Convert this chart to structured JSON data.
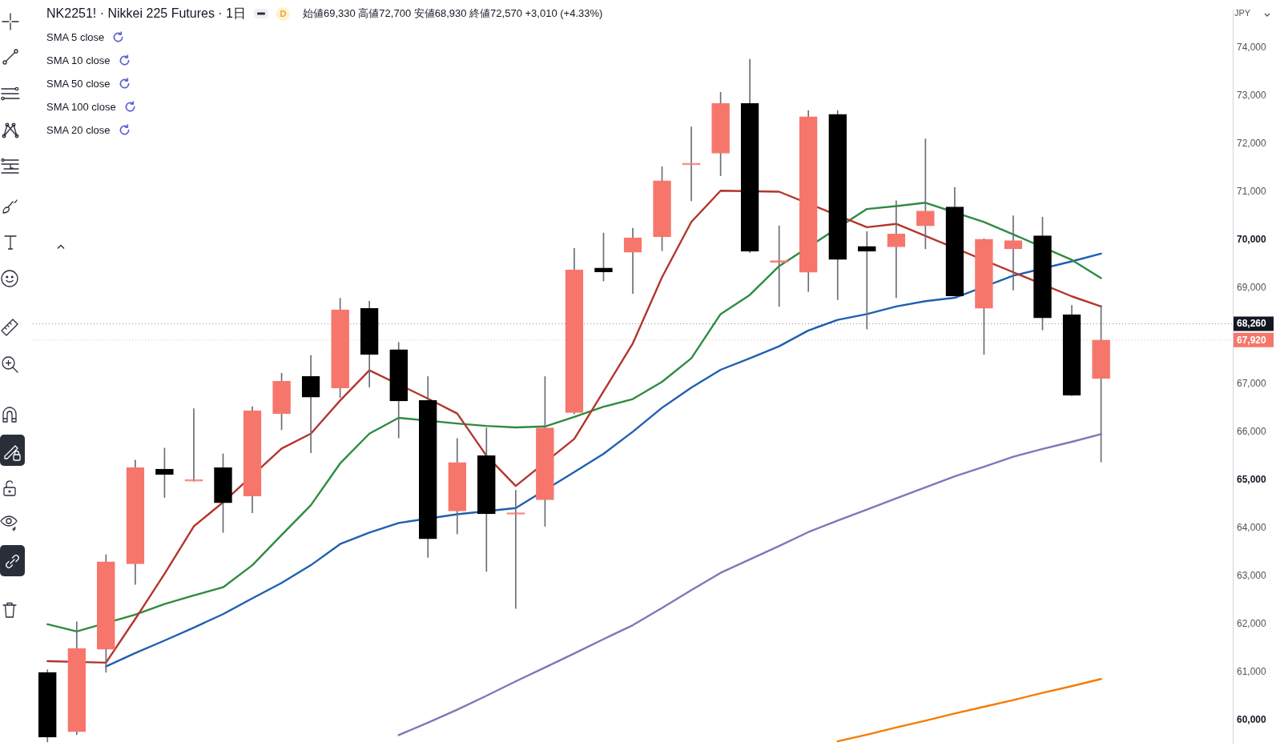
{
  "chart_data": {
    "type": "candlestick",
    "title": "NK2251! · Nikkei 225 Futures · 1日",
    "subtitle": "始値69,330 高値72,700 安値68,930 終値72,570 +3,010 (+4.33%)",
    "ylabel": "JPY",
    "annotations": [
      "D",
      "SMA 5 close",
      "SMA 10 close",
      "SMA 50 close",
      "SMA 100 close",
      "SMA 20 close"
    ],
    "categories": [
      null,
      null,
      null,
      null,
      null,
      null,
      null,
      null,
      null,
      null,
      null,
      null,
      null,
      null,
      null,
      null,
      null,
      null,
      null,
      null,
      null,
      null,
      null,
      null,
      null,
      null,
      null,
      null,
      null,
      null,
      null,
      null,
      null,
      null,
      null,
      null,
      null,
      null,
      null,
      null,
      null
    ],
    "ohlc": [
      [
        60990,
        61050,
        59550,
        59650
      ],
      [
        59760,
        62050,
        59700,
        61490
      ],
      [
        61480,
        63450,
        61000,
        63300
      ],
      [
        63260,
        65420,
        62830,
        65260
      ],
      [
        65230,
        65670,
        64640,
        65120
      ],
      [
        64980,
        66490,
        64980,
        64990
      ],
      [
        65260,
        65550,
        63910,
        64530
      ],
      [
        64670,
        66530,
        64320,
        66450
      ],
      [
        66390,
        67230,
        66050,
        67060
      ],
      [
        67160,
        67600,
        65570,
        66730
      ],
      [
        66920,
        68790,
        66720,
        68550
      ],
      [
        68580,
        68730,
        66940,
        67620
      ],
      [
        67720,
        67870,
        65880,
        66650
      ],
      [
        66660,
        67160,
        63390,
        63780
      ],
      [
        64360,
        65870,
        63880,
        65370
      ],
      [
        65510,
        66090,
        63100,
        64300
      ],
      [
        64290,
        64790,
        62330,
        64290
      ],
      [
        64590,
        67160,
        64040,
        66090
      ],
      [
        66410,
        69830,
        66380,
        69380
      ],
      [
        69420,
        70150,
        69150,
        69340
      ],
      [
        69750,
        70250,
        68890,
        70050
      ],
      [
        70070,
        71530,
        69780,
        71240
      ],
      [
        71570,
        72360,
        70820,
        71600
      ],
      [
        71810,
        73080,
        71340,
        72850
      ],
      [
        72850,
        73770,
        69740,
        69770
      ],
      [
        69540,
        70300,
        68620,
        69560
      ],
      [
        69330,
        72700,
        68930,
        72570
      ],
      [
        72620,
        72700,
        68760,
        69600
      ],
      [
        69870,
        70180,
        68150,
        69770
      ],
      [
        69860,
        70820,
        68800,
        70130
      ],
      [
        70300,
        72110,
        69820,
        70610
      ],
      [
        70690,
        71100,
        68830,
        68840
      ],
      [
        68580,
        70030,
        67620,
        70020
      ],
      [
        69820,
        70510,
        68960,
        69990
      ],
      [
        70090,
        70480,
        68130,
        68380
      ],
      [
        68450,
        68640,
        66760,
        66770
      ],
      [
        67120,
        68640,
        65380,
        67920
      ],
      null,
      null,
      null,
      null
    ],
    "colors": [
      "#000000",
      "#f7766b",
      "#f7766b",
      "#f7766b",
      "#000000",
      "#f7766b",
      "#000000",
      "#f7766b",
      "#f7766b",
      "#000000",
      "#f7766b",
      "#000000",
      "#000000",
      "#000000",
      "#f7766b",
      "#000000",
      "#f7766b",
      "#f7766b",
      "#f7766b",
      "#000000",
      "#f7766b",
      "#f7766b",
      "#f7766b",
      "#f7766b",
      "#000000",
      "#f7766b",
      "#f7766b",
      "#000000",
      "#000000",
      "#f7766b",
      "#f7766b",
      "#000000",
      "#f7766b",
      "#f7766b",
      "#000000",
      "#000000",
      "#f7766b",
      null,
      null,
      null,
      null
    ],
    "series": [
      {
        "type": "line",
        "color": "#b2362e",
        "values": [
          61230,
          null,
          61200,
          62110,
          63050,
          64040,
          64540,
          null,
          65660,
          65970,
          66660,
          67290,
          null,
          66700,
          66390,
          65510,
          64880,
          null,
          65860,
          66850,
          67850,
          69230,
          70380,
          71030,
          null,
          71010,
          null,
          null,
          70270,
          70340,
          null,
          null,
          null,
          null,
          null,
          68830,
          68620,
          null,
          null,
          null,
          null
        ]
      },
      {
        "type": "line",
        "color": "#2e8b40",
        "values": [
          62000,
          61850,
          null,
          62200,
          62420,
          62600,
          62770,
          63230,
          63860,
          64480,
          65350,
          65970,
          66300,
          null,
          66180,
          66130,
          66100,
          66120,
          66320,
          66530,
          66690,
          67050,
          67540,
          68460,
          68860,
          69460,
          null,
          null,
          70650,
          70710,
          70780,
          null,
          70380,
          70120,
          null,
          69590,
          69210,
          null,
          null,
          null,
          null
        ]
      },
      {
        "type": "line",
        "color": "#7e78b8",
        "values": [
          null,
          null,
          null,
          null,
          null,
          null,
          null,
          null,
          null,
          null,
          null,
          null,
          59690,
          59950,
          60220,
          60510,
          60810,
          61100,
          61390,
          61690,
          61980,
          62340,
          62710,
          63070,
          63350,
          63630,
          63920,
          64160,
          64390,
          64620,
          64850,
          65080,
          65280,
          65490,
          65650,
          65800,
          65960,
          null,
          null,
          null,
          null
        ]
      },
      {
        "type": "line",
        "color": "#f57c00",
        "values": [
          null,
          null,
          null,
          null,
          null,
          null,
          null,
          null,
          null,
          null,
          null,
          null,
          null,
          null,
          null,
          null,
          null,
          null,
          null,
          null,
          null,
          null,
          null,
          null,
          null,
          null,
          null,
          59560,
          59700,
          59850,
          59990,
          60140,
          60280,
          60420,
          60570,
          60710,
          60860,
          null,
          null,
          null,
          null
        ]
      },
      {
        "type": "line",
        "color": "#1f5fb0",
        "values": [
          null,
          null,
          61120,
          61400,
          61660,
          61930,
          62210,
          62540,
          62860,
          63230,
          63670,
          63910,
          64110,
          null,
          64290,
          null,
          64420,
          null,
          65170,
          65550,
          66010,
          66510,
          66930,
          67300,
          67540,
          67790,
          68120,
          68340,
          68460,
          68620,
          68730,
          68800,
          null,
          69260,
          null,
          69560,
          69720,
          null,
          null,
          null,
          null
        ]
      }
    ],
    "ylim": [
      59500,
      74800
    ],
    "yticks": [
      {
        "value": 60000,
        "label": "60,000"
      },
      {
        "value": 61000,
        "label": "61,000"
      },
      {
        "value": 62000,
        "label": "62,000"
      },
      {
        "value": 63000,
        "label": "63,000"
      },
      {
        "value": 64000,
        "label": "64,000"
      },
      {
        "value": 65000,
        "label": "65,000"
      },
      {
        "value": 66000,
        "label": "66,000"
      },
      {
        "value": 67000,
        "label": "67,000"
      },
      {
        "value": 69000,
        "label": "69,000"
      },
      {
        "value": 70000,
        "label": "70,000"
      },
      {
        "value": 71000,
        "label": "71,000"
      },
      {
        "value": 72000,
        "label": "72,000"
      },
      {
        "value": 73000,
        "label": "73,000"
      },
      {
        "value": 74000,
        "label": "74,000"
      }
    ],
    "ref_lines": [
      {
        "axis": "y",
        "value": 68260,
        "label": "68,260",
        "color": "#131722",
        "line_style": "dotted"
      },
      {
        "axis": "y",
        "value": 67920,
        "label": "67,920",
        "color": "#f7766b",
        "line_style": "dotted"
      }
    ]
  }
}
